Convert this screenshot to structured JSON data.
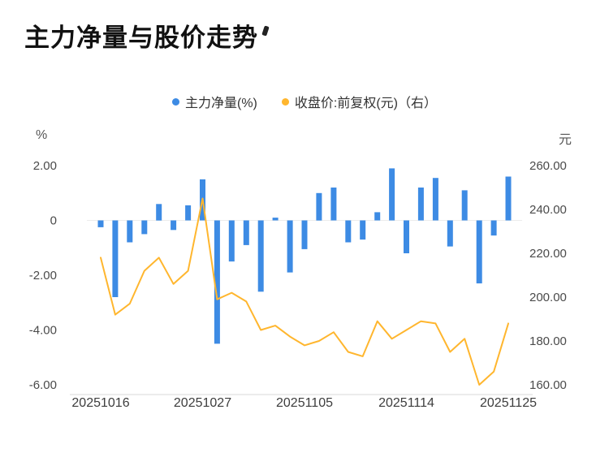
{
  "title": "主力净量与股价走势",
  "chart_data": {
    "type": "combo-bar-line",
    "title": "主力净量与股价走势",
    "grid": false,
    "legend_position": "top",
    "n_points": 29,
    "x_tick_labels": [
      "20251016",
      "20251027",
      "20251105",
      "20251114",
      "20251125"
    ],
    "x_tick_indices": [
      0,
      7,
      14,
      21,
      28
    ],
    "left_axis": {
      "unit": "%",
      "max": 2,
      "min": -6,
      "tick_labels": [
        "2.00",
        "0",
        "-2.00",
        "-4.00",
        "-6.00"
      ],
      "tick_values": [
        2,
        0,
        -2,
        -4,
        -6
      ]
    },
    "right_axis": {
      "unit": "元",
      "max": 260,
      "min": 160,
      "tick_labels": [
        "260.00",
        "240.00",
        "220.00",
        "200.00",
        "180.00",
        "160.00"
      ],
      "tick_values": [
        260,
        240,
        220,
        200,
        180,
        160
      ]
    },
    "series": [
      {
        "name": "主力净量(%)",
        "type": "bar",
        "axis": "left",
        "color": "#3D8BE4",
        "values": [
          -0.25,
          -2.8,
          -0.8,
          -0.5,
          0.6,
          -0.35,
          0.55,
          1.5,
          -4.5,
          -1.5,
          -0.9,
          -2.6,
          0.1,
          -1.9,
          -1.05,
          1.0,
          1.2,
          -0.8,
          -0.7,
          0.3,
          1.9,
          -1.2,
          1.2,
          1.55,
          -0.95,
          1.1,
          -2.3,
          -0.55,
          1.6
        ]
      },
      {
        "name": "收盘价:前复权(元)（右）",
        "type": "line",
        "axis": "right",
        "color": "#FFB62E",
        "values": [
          218,
          192,
          197,
          212,
          218,
          206,
          212,
          245,
          199,
          202,
          198,
          185,
          187,
          182,
          178,
          180,
          184,
          175,
          173,
          189,
          181,
          185,
          189,
          188,
          175,
          181,
          160,
          166,
          188
        ]
      }
    ]
  }
}
